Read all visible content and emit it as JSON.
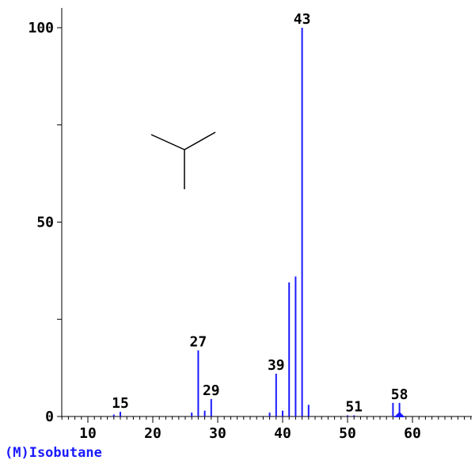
{
  "chart_data": {
    "type": "bar",
    "compound_label": "(M)Isobutane",
    "xlim": [
      6,
      70
    ],
    "ylim": [
      0,
      100
    ],
    "x_ticks": [
      "10",
      "20",
      "30",
      "40",
      "50",
      "60"
    ],
    "y_ticks": [
      "0",
      "50",
      "100"
    ],
    "bar_color": "#1a1aff",
    "axis_color": "#000000",
    "marker_color": "#1a1aff",
    "molecular_ion_mz": 58,
    "peaks": [
      {
        "mz": 14,
        "intensity": 0.5
      },
      {
        "mz": 15,
        "intensity": 1.2,
        "label": "15"
      },
      {
        "mz": 26,
        "intensity": 1.0
      },
      {
        "mz": 27,
        "intensity": 17.0,
        "label": "27"
      },
      {
        "mz": 28,
        "intensity": 1.5
      },
      {
        "mz": 29,
        "intensity": 4.5,
        "label": "29"
      },
      {
        "mz": 38,
        "intensity": 1.0
      },
      {
        "mz": 39,
        "intensity": 11.0,
        "label": "39"
      },
      {
        "mz": 40,
        "intensity": 1.5
      },
      {
        "mz": 41,
        "intensity": 34.5
      },
      {
        "mz": 42,
        "intensity": 36.0
      },
      {
        "mz": 43,
        "intensity": 100.0,
        "label": "43"
      },
      {
        "mz": 44,
        "intensity": 3.0
      },
      {
        "mz": 50,
        "intensity": 0.3
      },
      {
        "mz": 51,
        "intensity": 0.3,
        "label": "51"
      },
      {
        "mz": 57,
        "intensity": 3.5
      },
      {
        "mz": 58,
        "intensity": 3.5,
        "label": "58"
      }
    ]
  }
}
